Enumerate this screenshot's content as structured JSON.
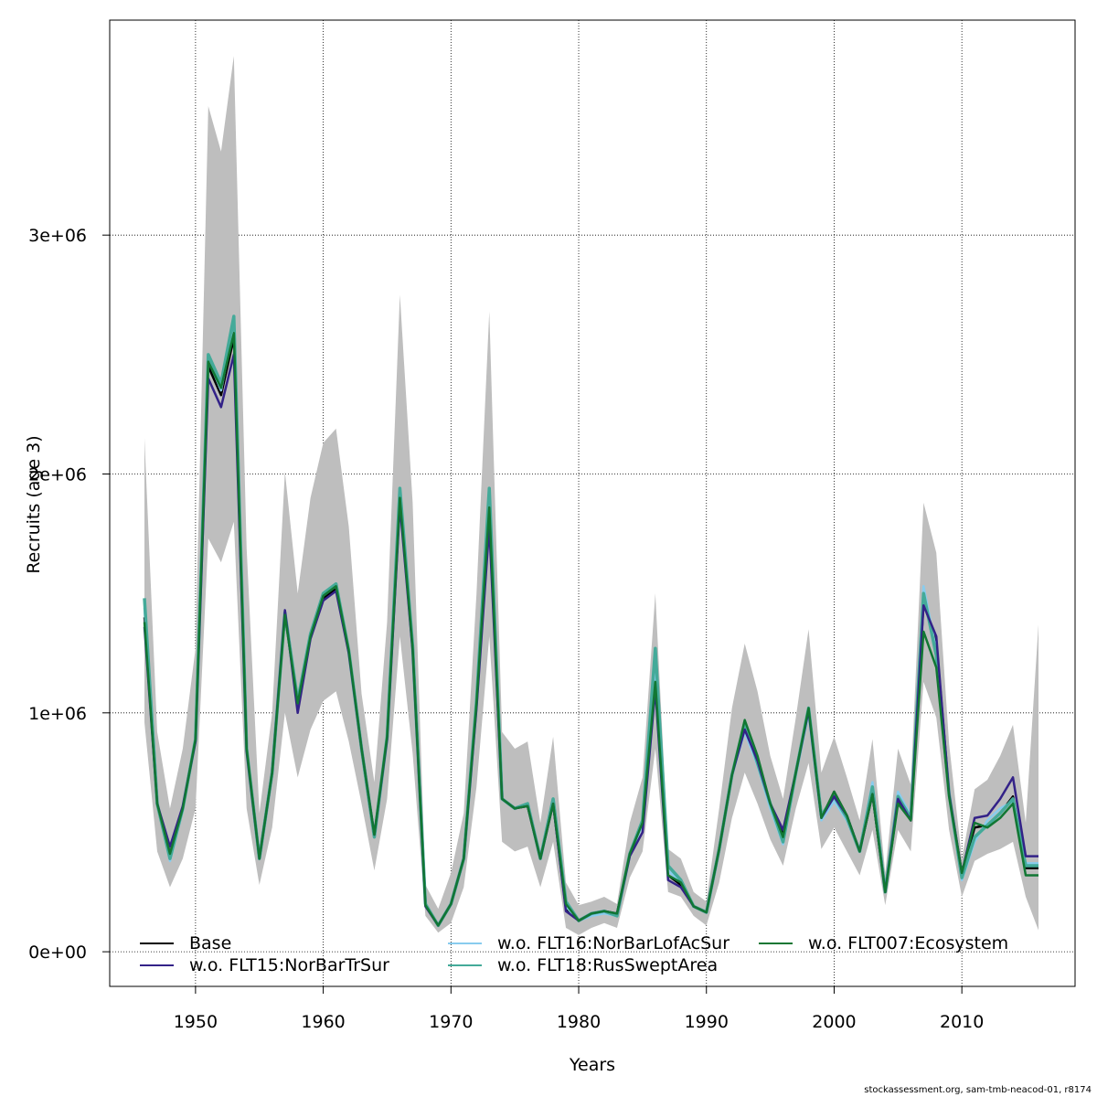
{
  "chart_data": {
    "type": "line",
    "title": "",
    "xlabel": "Years",
    "ylabel": "Recruits (age 3)",
    "xlim": [
      1946,
      2016
    ],
    "ylim": [
      -145000,
      3900000
    ],
    "grid": true,
    "x_ticks": [
      1950,
      1960,
      1970,
      1980,
      1990,
      2000,
      2010
    ],
    "y_ticks": [
      0,
      1000000,
      2000000,
      3000000
    ],
    "y_tick_labels": [
      "0e+00",
      "1e+06",
      "2e+06",
      "3e+06"
    ],
    "legend_placement": "bottom",
    "band": {
      "name": "confidence interval",
      "color": "#BEBEBE",
      "upper": [
        2.15,
        0.92,
        0.6,
        0.85,
        1.27,
        3.54,
        3.35,
        3.75,
        1.69,
        0.58,
        1.0,
        2.01,
        1.5,
        1.9,
        2.13,
        2.19,
        1.78,
        1.08,
        0.71,
        1.38,
        2.75,
        1.88,
        0.28,
        0.18,
        0.33,
        0.58,
        1.5,
        2.68,
        0.92,
        0.85,
        0.88,
        0.54,
        0.9,
        0.29,
        0.195,
        0.21,
        0.23,
        0.2,
        0.54,
        0.73,
        1.5,
        0.43,
        0.39,
        0.25,
        0.21,
        0.6,
        1.02,
        1.29,
        1.09,
        0.82,
        0.64,
        0.98,
        1.35,
        0.75,
        0.9,
        0.73,
        0.55,
        0.89,
        0.33,
        0.85,
        0.7,
        1.88,
        1.67,
        0.87,
        0.39,
        0.68,
        0.72,
        0.82,
        0.95,
        0.54,
        1.37
      ],
      "lower": [
        0.96,
        0.42,
        0.27,
        0.39,
        0.6,
        1.73,
        1.63,
        1.8,
        0.6,
        0.28,
        0.52,
        1.0,
        0.73,
        0.93,
        1.05,
        1.09,
        0.88,
        0.62,
        0.34,
        0.64,
        1.32,
        0.83,
        0.15,
        0.08,
        0.12,
        0.27,
        0.69,
        1.32,
        0.46,
        0.42,
        0.44,
        0.27,
        0.46,
        0.1,
        0.07,
        0.1,
        0.12,
        0.1,
        0.31,
        0.42,
        0.85,
        0.25,
        0.23,
        0.15,
        0.11,
        0.29,
        0.56,
        0.75,
        0.62,
        0.47,
        0.36,
        0.6,
        0.79,
        0.43,
        0.52,
        0.42,
        0.32,
        0.51,
        0.195,
        0.51,
        0.42,
        1.13,
        0.98,
        0.51,
        0.23,
        0.38,
        0.41,
        0.43,
        0.46,
        0.23,
        0.09
      ]
    },
    "value_unit": 1000000,
    "series": [
      {
        "name": "Base",
        "color": "#000000",
        "values": [
          1.4,
          0.62,
          0.41,
          0.6,
          0.89,
          2.45,
          2.33,
          2.57,
          0.85,
          0.39,
          0.75,
          1.41,
          1.04,
          1.32,
          1.48,
          1.52,
          1.26,
          0.85,
          0.49,
          0.9,
          1.89,
          1.27,
          0.195,
          0.11,
          0.2,
          0.39,
          1.04,
          1.84,
          0.64,
          0.6,
          0.61,
          0.39,
          0.62,
          0.18,
          0.13,
          0.16,
          0.17,
          0.16,
          0.41,
          0.54,
          1.12,
          0.32,
          0.28,
          0.19,
          0.165,
          0.43,
          0.74,
          0.96,
          0.81,
          0.62,
          0.49,
          0.75,
          1.02,
          0.56,
          0.67,
          0.57,
          0.42,
          0.66,
          0.25,
          0.63,
          0.55,
          1.46,
          1.3,
          0.66,
          0.33,
          0.52,
          0.53,
          0.58,
          0.65,
          0.35,
          0.35
        ]
      },
      {
        "name": "w.o. FLT15:NorBarTrSur",
        "color": "#332288",
        "values": [
          1.36,
          0.62,
          0.44,
          0.61,
          0.88,
          2.4,
          2.28,
          2.5,
          0.84,
          0.39,
          0.75,
          1.43,
          1.0,
          1.31,
          1.47,
          1.51,
          1.25,
          0.85,
          0.49,
          0.89,
          1.87,
          1.26,
          0.19,
          0.11,
          0.2,
          0.39,
          1.02,
          1.78,
          0.64,
          0.6,
          0.61,
          0.39,
          0.62,
          0.17,
          0.13,
          0.16,
          0.17,
          0.16,
          0.4,
          0.5,
          1.1,
          0.3,
          0.27,
          0.19,
          0.165,
          0.43,
          0.74,
          0.93,
          0.8,
          0.62,
          0.51,
          0.75,
          1.01,
          0.56,
          0.65,
          0.57,
          0.42,
          0.66,
          0.25,
          0.64,
          0.55,
          1.45,
          1.32,
          0.66,
          0.33,
          0.56,
          0.57,
          0.64,
          0.73,
          0.4,
          0.4
        ]
      },
      {
        "name": "w.o. FLT16:NorBarLofAcSur",
        "color": "#88CCEE",
        "values": [
          1.44,
          0.62,
          0.38,
          0.59,
          0.89,
          2.48,
          2.35,
          2.62,
          0.85,
          0.39,
          0.75,
          1.41,
          1.04,
          1.32,
          1.49,
          1.53,
          1.26,
          0.85,
          0.48,
          0.9,
          1.92,
          1.27,
          0.195,
          0.11,
          0.2,
          0.39,
          1.04,
          1.9,
          0.64,
          0.6,
          0.62,
          0.39,
          0.63,
          0.19,
          0.13,
          0.15,
          0.16,
          0.15,
          0.41,
          0.53,
          1.2,
          0.34,
          0.29,
          0.19,
          0.165,
          0.43,
          0.74,
          0.92,
          0.78,
          0.6,
          0.45,
          0.74,
          1.0,
          0.55,
          0.63,
          0.55,
          0.42,
          0.71,
          0.25,
          0.67,
          0.57,
          1.53,
          1.26,
          0.66,
          0.3,
          0.46,
          0.55,
          0.6,
          0.63,
          0.37,
          0.37
        ]
      },
      {
        "name": "w.o. FLT18:RusSweptArea",
        "color": "#44AA99",
        "values": [
          1.48,
          0.62,
          0.39,
          0.6,
          0.89,
          2.5,
          2.38,
          2.66,
          0.85,
          0.39,
          0.75,
          1.42,
          1.05,
          1.33,
          1.5,
          1.54,
          1.26,
          0.85,
          0.48,
          0.9,
          1.94,
          1.28,
          0.2,
          0.11,
          0.2,
          0.39,
          1.05,
          1.94,
          0.64,
          0.6,
          0.62,
          0.39,
          0.64,
          0.21,
          0.13,
          0.16,
          0.17,
          0.15,
          0.41,
          0.55,
          1.27,
          0.36,
          0.3,
          0.19,
          0.165,
          0.43,
          0.74,
          0.96,
          0.79,
          0.62,
          0.46,
          0.75,
          1.02,
          0.57,
          0.65,
          0.56,
          0.42,
          0.69,
          0.25,
          0.65,
          0.56,
          1.5,
          1.24,
          0.66,
          0.31,
          0.48,
          0.53,
          0.58,
          0.64,
          0.36,
          0.36
        ]
      },
      {
        "name": "w.o. FLT007:Ecosystem",
        "color": "#117733",
        "values": [
          1.38,
          0.62,
          0.41,
          0.6,
          0.89,
          2.47,
          2.36,
          2.59,
          0.85,
          0.39,
          0.75,
          1.41,
          1.04,
          1.32,
          1.49,
          1.53,
          1.26,
          0.85,
          0.49,
          0.9,
          1.9,
          1.27,
          0.195,
          0.11,
          0.2,
          0.39,
          1.04,
          1.86,
          0.64,
          0.6,
          0.61,
          0.39,
          0.62,
          0.2,
          0.13,
          0.16,
          0.17,
          0.16,
          0.41,
          0.54,
          1.13,
          0.32,
          0.29,
          0.19,
          0.165,
          0.43,
          0.74,
          0.97,
          0.82,
          0.62,
          0.48,
          0.75,
          1.02,
          0.56,
          0.67,
          0.57,
          0.42,
          0.66,
          0.25,
          0.62,
          0.55,
          1.34,
          1.19,
          0.65,
          0.33,
          0.54,
          0.52,
          0.56,
          0.62,
          0.32,
          0.32
        ]
      }
    ]
  },
  "footer": "stockassessment.org, sam-tmb-neacod-01, r8174"
}
